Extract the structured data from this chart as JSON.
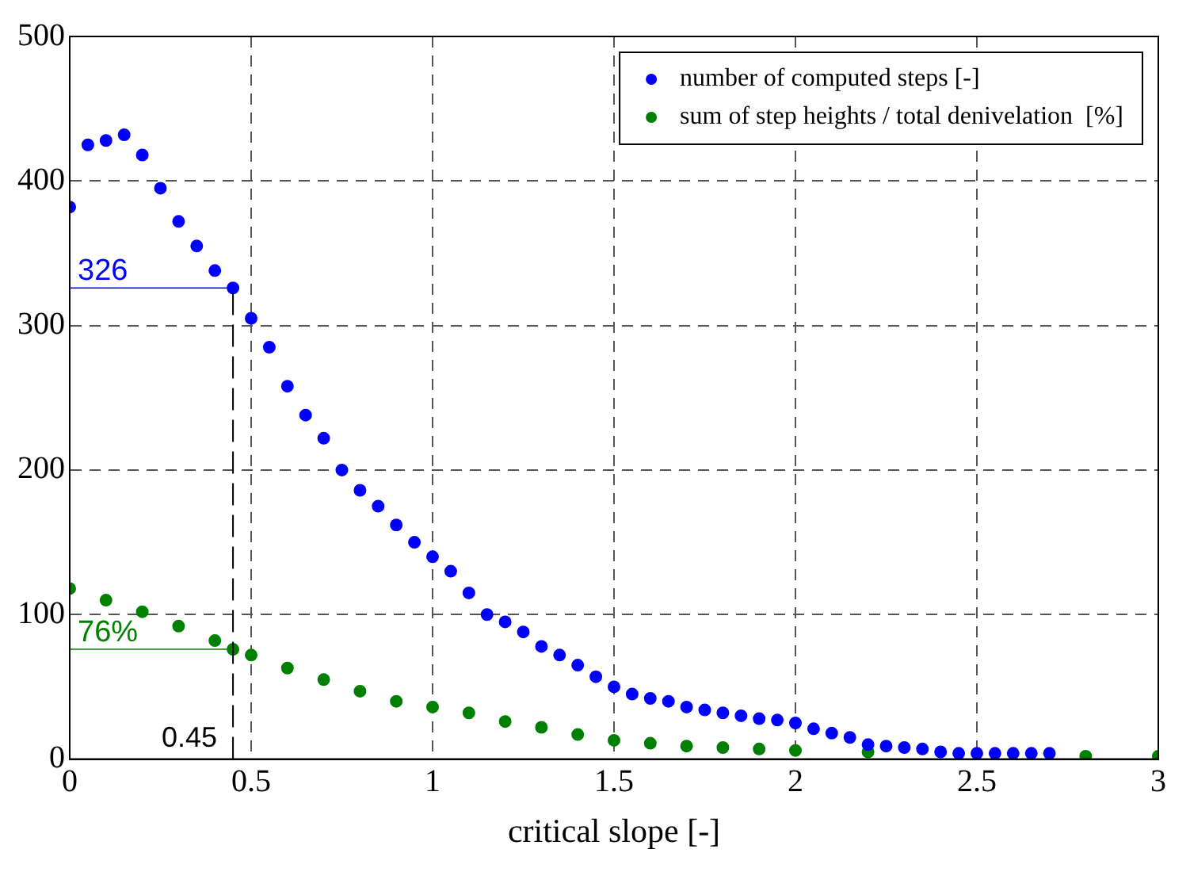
{
  "chart_data": {
    "type": "scatter",
    "xlabel": "critical slope [-]",
    "xlim": [
      0,
      3
    ],
    "xticks": [
      0,
      0.5,
      1,
      1.5,
      2,
      2.5,
      3
    ],
    "ylim": [
      0,
      500
    ],
    "yticks": [
      0,
      100,
      200,
      300,
      400,
      500
    ],
    "grid": true,
    "legend": "top right",
    "marker": "circle",
    "series": [
      {
        "name": "number of computed steps [-]",
        "color": "#0000ff",
        "x": [
          0,
          0.05,
          0.1,
          0.15,
          0.2,
          0.25,
          0.3,
          0.35,
          0.4,
          0.45,
          0.5,
          0.55,
          0.6,
          0.65,
          0.7,
          0.75,
          0.8,
          0.85,
          0.9,
          0.95,
          1,
          1.05,
          1.1,
          1.15,
          1.2,
          1.25,
          1.3,
          1.35,
          1.4,
          1.45,
          1.5,
          1.55,
          1.6,
          1.65,
          1.7,
          1.75,
          1.8,
          1.85,
          1.9,
          1.95,
          2,
          2.05,
          2.1,
          2.15,
          2.2,
          2.25,
          2.3,
          2.35,
          2.4,
          2.45,
          2.5,
          2.55,
          2.6,
          2.65,
          2.7
        ],
        "values": [
          382,
          425,
          428,
          432,
          418,
          395,
          372,
          355,
          338,
          326,
          305,
          285,
          258,
          238,
          222,
          200,
          186,
          175,
          162,
          150,
          140,
          130,
          115,
          100,
          95,
          88,
          78,
          72,
          65,
          57,
          50,
          45,
          42,
          40,
          36,
          34,
          32,
          30,
          28,
          27,
          25,
          21,
          18,
          15,
          10,
          9,
          8,
          7,
          5,
          4,
          4,
          4,
          4,
          4,
          4
        ]
      },
      {
        "name": "sum of step heights / total denivelation  [%]",
        "color": "#008000",
        "x": [
          0,
          0.1,
          0.2,
          0.3,
          0.4,
          0.45,
          0.5,
          0.6,
          0.7,
          0.8,
          0.9,
          1,
          1.1,
          1.2,
          1.3,
          1.4,
          1.5,
          1.6,
          1.7,
          1.8,
          1.9,
          2,
          2.2,
          2.4,
          2.6,
          2.8,
          3
        ],
        "values": [
          118,
          110,
          102,
          92,
          82,
          76,
          72,
          63,
          55,
          47,
          40,
          36,
          32,
          26,
          22,
          17,
          13,
          11,
          9,
          8,
          7,
          6,
          5,
          null,
          null,
          2,
          2
        ]
      }
    ],
    "annotations": [
      {
        "text": "326",
        "x": 0.45,
        "y": 326
      },
      {
        "text": "76%",
        "x": 0.45,
        "y": 76
      }
    ],
    "ref_lines": [
      {
        "axis": "x",
        "value": 0.45,
        "label": "0.45",
        "line_style": "dashed"
      }
    ]
  }
}
